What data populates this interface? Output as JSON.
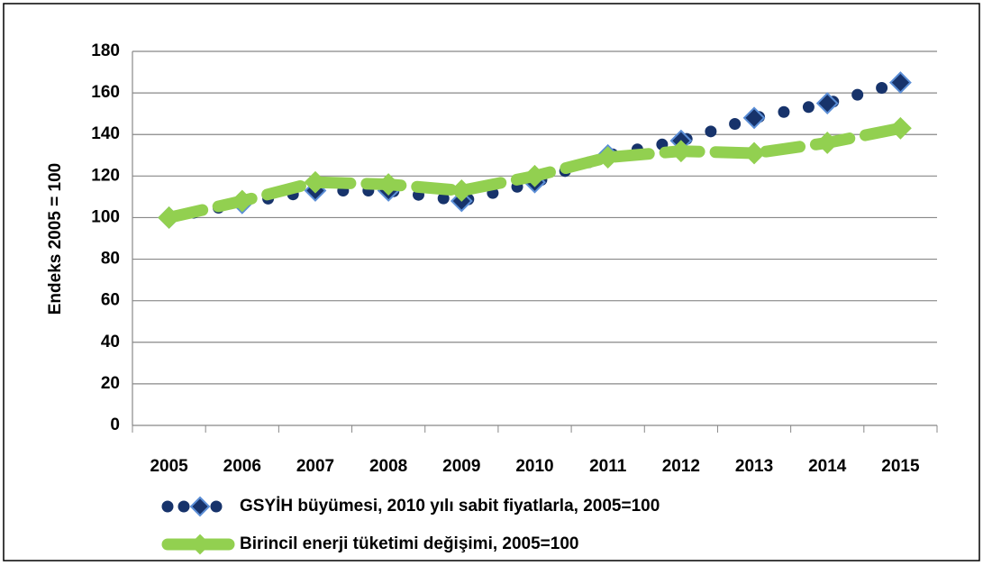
{
  "chart_data": {
    "type": "line",
    "categories": [
      "2005",
      "2006",
      "2007",
      "2008",
      "2009",
      "2010",
      "2011",
      "2012",
      "2013",
      "2014",
      "2015"
    ],
    "series": [
      {
        "name": "GSYİH büyümesi, 2010 yılı sabit fiyatlarla, 2005=100",
        "color": "#17336b",
        "values": [
          100,
          107,
          113,
          113,
          108,
          117,
          130,
          137,
          148,
          155,
          165
        ]
      },
      {
        "name": "Birincil enerji tüketimi değişimi, 2005=100",
        "color": "#92d050",
        "values": [
          100,
          108,
          117,
          116,
          113,
          120,
          129,
          132,
          131,
          136,
          143
        ]
      }
    ],
    "ylabel": "Endeks 2005 = 100",
    "ylim": [
      0,
      180
    ],
    "yticks": [
      0,
      20,
      40,
      60,
      80,
      100,
      120,
      140,
      160,
      180
    ],
    "grid": true,
    "legend": "bottom"
  }
}
